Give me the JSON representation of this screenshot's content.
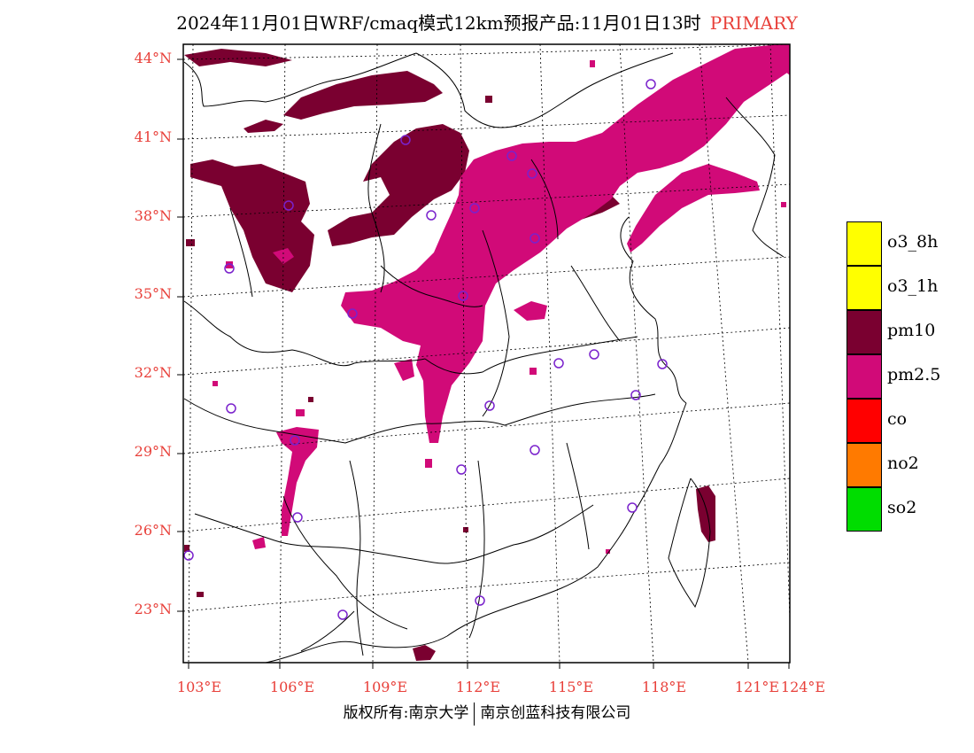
{
  "title": {
    "main": "2024年11月01日WRF/cmaq模式12km预报产品:11月01日13时",
    "pollutant_flag": "PRIMARY"
  },
  "axes": {
    "lat_labels": [
      "44°N",
      "41°N",
      "38°N",
      "35°N",
      "32°N",
      "29°N",
      "26°N",
      "23°N"
    ],
    "lon_labels": [
      "103°E",
      "106°E",
      "109°E",
      "112°E",
      "115°E",
      "118°E",
      "121°E",
      "124°E"
    ]
  },
  "legend": {
    "items": [
      {
        "label": "o3_8h",
        "color": "#ffff00"
      },
      {
        "label": "o3_1h",
        "color": "#ffff00"
      },
      {
        "label": "pm10",
        "color": "#7a0030"
      },
      {
        "label": "pm2.5",
        "color": "#d10a78"
      },
      {
        "label": "co",
        "color": "#ff0000"
      },
      {
        "label": "no2",
        "color": "#ff7a00"
      },
      {
        "label": "so2",
        "color": "#00dd00"
      }
    ]
  },
  "colors": {
    "pm10": "#7a0030",
    "pm25": "#d10a78",
    "station": "#7a22cc",
    "label": "#e8403a"
  },
  "copyright": {
    "left": "版权所有:南京大学",
    "right": "南京创蓝科技有限公司"
  }
}
